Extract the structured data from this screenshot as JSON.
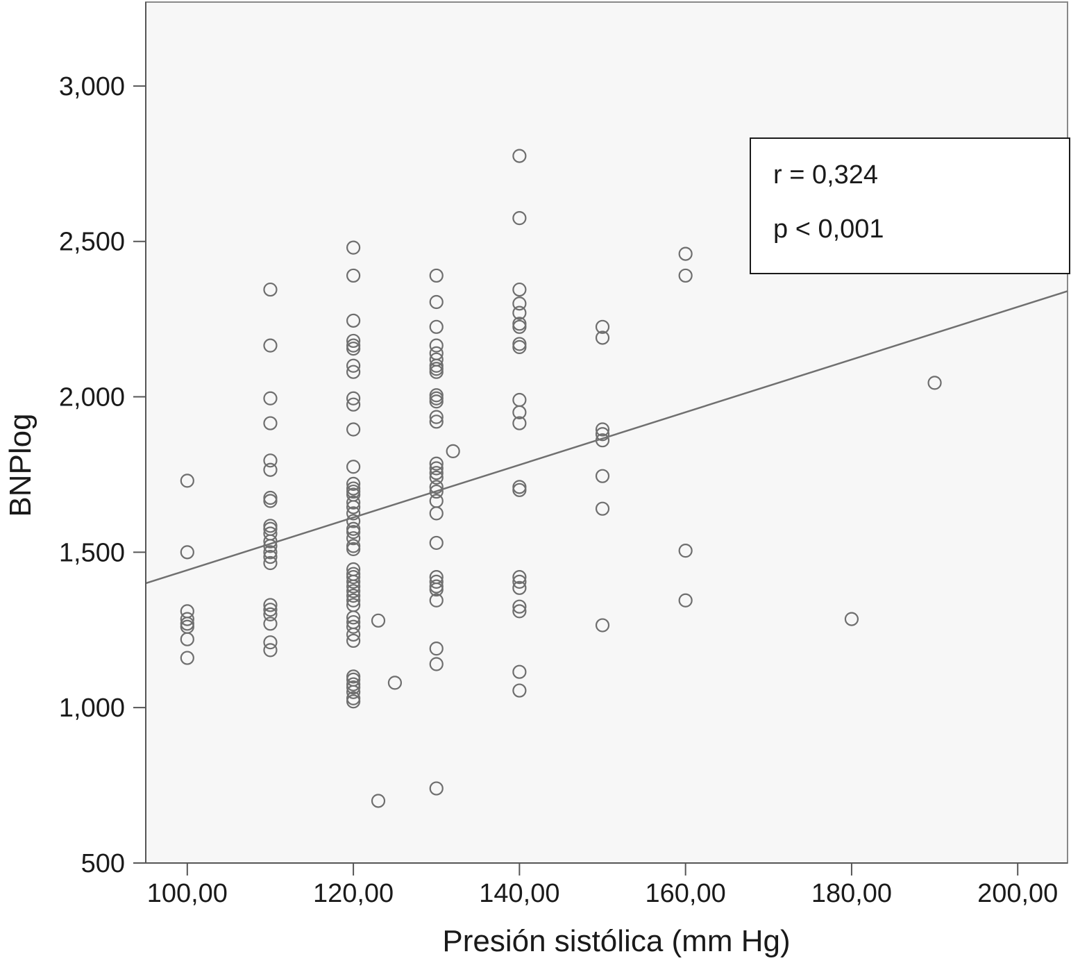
{
  "chart_data": {
    "type": "scatter",
    "title": "",
    "xlabel": "Presión sistólica (mm Hg)",
    "ylabel": "BNPlog",
    "xlim": [
      95,
      206
    ],
    "ylim": [
      500,
      3270
    ],
    "x_ticks": [
      100,
      120,
      140,
      160,
      180,
      200
    ],
    "x_tick_labels": [
      "100,00",
      "120,00",
      "140,00",
      "160,00",
      "180,00",
      "200,00"
    ],
    "y_ticks": [
      500,
      1000,
      1500,
      2000,
      2500,
      3000
    ],
    "y_tick_labels": [
      "500",
      "1,000",
      "1,500",
      "2,000",
      "2,500",
      "3,000"
    ],
    "grid": false,
    "annotation": {
      "line1": "r = 0,324",
      "line2": "p < 0,001",
      "placement": "top-right"
    },
    "regression_line": {
      "x": [
        95,
        206
      ],
      "y": [
        1400,
        2340
      ]
    },
    "colors": {
      "background": "#f7f7f7",
      "marker": "#6e6e6e",
      "line": "#707070",
      "frame": "#888888"
    },
    "points": [
      {
        "x": 100,
        "y": 1730
      },
      {
        "x": 100,
        "y": 1500
      },
      {
        "x": 100,
        "y": 1310
      },
      {
        "x": 100,
        "y": 1285
      },
      {
        "x": 100,
        "y": 1270
      },
      {
        "x": 100,
        "y": 1260
      },
      {
        "x": 100,
        "y": 1220
      },
      {
        "x": 100,
        "y": 1160
      },
      {
        "x": 110,
        "y": 2345
      },
      {
        "x": 110,
        "y": 2165
      },
      {
        "x": 110,
        "y": 1995
      },
      {
        "x": 110,
        "y": 1915
      },
      {
        "x": 110,
        "y": 1795
      },
      {
        "x": 110,
        "y": 1765
      },
      {
        "x": 110,
        "y": 1675
      },
      {
        "x": 110,
        "y": 1665
      },
      {
        "x": 110,
        "y": 1585
      },
      {
        "x": 110,
        "y": 1575
      },
      {
        "x": 110,
        "y": 1560
      },
      {
        "x": 110,
        "y": 1535
      },
      {
        "x": 110,
        "y": 1520
      },
      {
        "x": 110,
        "y": 1500
      },
      {
        "x": 110,
        "y": 1485
      },
      {
        "x": 110,
        "y": 1465
      },
      {
        "x": 110,
        "y": 1330
      },
      {
        "x": 110,
        "y": 1315
      },
      {
        "x": 110,
        "y": 1300
      },
      {
        "x": 110,
        "y": 1270
      },
      {
        "x": 110,
        "y": 1210
      },
      {
        "x": 110,
        "y": 1185
      },
      {
        "x": 120,
        "y": 2480
      },
      {
        "x": 120,
        "y": 2390
      },
      {
        "x": 120,
        "y": 2245
      },
      {
        "x": 120,
        "y": 2180
      },
      {
        "x": 120,
        "y": 2165
      },
      {
        "x": 120,
        "y": 2155
      },
      {
        "x": 120,
        "y": 2100
      },
      {
        "x": 120,
        "y": 2080
      },
      {
        "x": 120,
        "y": 1995
      },
      {
        "x": 120,
        "y": 1975
      },
      {
        "x": 120,
        "y": 1895
      },
      {
        "x": 120,
        "y": 1775
      },
      {
        "x": 120,
        "y": 1720
      },
      {
        "x": 120,
        "y": 1705
      },
      {
        "x": 120,
        "y": 1695
      },
      {
        "x": 120,
        "y": 1685
      },
      {
        "x": 120,
        "y": 1660
      },
      {
        "x": 120,
        "y": 1645
      },
      {
        "x": 120,
        "y": 1625
      },
      {
        "x": 120,
        "y": 1600
      },
      {
        "x": 120,
        "y": 1575
      },
      {
        "x": 120,
        "y": 1565
      },
      {
        "x": 120,
        "y": 1545
      },
      {
        "x": 120,
        "y": 1520
      },
      {
        "x": 120,
        "y": 1510
      },
      {
        "x": 120,
        "y": 1445
      },
      {
        "x": 120,
        "y": 1430
      },
      {
        "x": 120,
        "y": 1420
      },
      {
        "x": 120,
        "y": 1405
      },
      {
        "x": 120,
        "y": 1390
      },
      {
        "x": 120,
        "y": 1375
      },
      {
        "x": 120,
        "y": 1360
      },
      {
        "x": 120,
        "y": 1345
      },
      {
        "x": 120,
        "y": 1330
      },
      {
        "x": 120,
        "y": 1290
      },
      {
        "x": 120,
        "y": 1275
      },
      {
        "x": 120,
        "y": 1260
      },
      {
        "x": 120,
        "y": 1235
      },
      {
        "x": 120,
        "y": 1215
      },
      {
        "x": 120,
        "y": 1100
      },
      {
        "x": 120,
        "y": 1090
      },
      {
        "x": 120,
        "y": 1075
      },
      {
        "x": 120,
        "y": 1065
      },
      {
        "x": 120,
        "y": 1050
      },
      {
        "x": 120,
        "y": 1030
      },
      {
        "x": 120,
        "y": 1020
      },
      {
        "x": 123,
        "y": 1280
      },
      {
        "x": 123,
        "y": 700
      },
      {
        "x": 125,
        "y": 1080
      },
      {
        "x": 130,
        "y": 2390
      },
      {
        "x": 130,
        "y": 2305
      },
      {
        "x": 130,
        "y": 2225
      },
      {
        "x": 130,
        "y": 2165
      },
      {
        "x": 130,
        "y": 2140
      },
      {
        "x": 130,
        "y": 2120
      },
      {
        "x": 130,
        "y": 2100
      },
      {
        "x": 130,
        "y": 2090
      },
      {
        "x": 130,
        "y": 2080
      },
      {
        "x": 130,
        "y": 2005
      },
      {
        "x": 130,
        "y": 1995
      },
      {
        "x": 130,
        "y": 1985
      },
      {
        "x": 130,
        "y": 1935
      },
      {
        "x": 130,
        "y": 1920
      },
      {
        "x": 130,
        "y": 1785
      },
      {
        "x": 130,
        "y": 1770
      },
      {
        "x": 130,
        "y": 1755
      },
      {
        "x": 130,
        "y": 1740
      },
      {
        "x": 130,
        "y": 1710
      },
      {
        "x": 130,
        "y": 1695
      },
      {
        "x": 130,
        "y": 1665
      },
      {
        "x": 130,
        "y": 1625
      },
      {
        "x": 130,
        "y": 1530
      },
      {
        "x": 130,
        "y": 1420
      },
      {
        "x": 130,
        "y": 1405
      },
      {
        "x": 130,
        "y": 1390
      },
      {
        "x": 130,
        "y": 1380
      },
      {
        "x": 130,
        "y": 1345
      },
      {
        "x": 130,
        "y": 1190
      },
      {
        "x": 130,
        "y": 1140
      },
      {
        "x": 130,
        "y": 740
      },
      {
        "x": 132,
        "y": 1825
      },
      {
        "x": 140,
        "y": 2775
      },
      {
        "x": 140,
        "y": 2575
      },
      {
        "x": 140,
        "y": 2345
      },
      {
        "x": 140,
        "y": 2300
      },
      {
        "x": 140,
        "y": 2270
      },
      {
        "x": 140,
        "y": 2235
      },
      {
        "x": 140,
        "y": 2225
      },
      {
        "x": 140,
        "y": 2170
      },
      {
        "x": 140,
        "y": 2160
      },
      {
        "x": 140,
        "y": 1990
      },
      {
        "x": 140,
        "y": 1950
      },
      {
        "x": 140,
        "y": 1915
      },
      {
        "x": 140,
        "y": 1710
      },
      {
        "x": 140,
        "y": 1700
      },
      {
        "x": 140,
        "y": 1420
      },
      {
        "x": 140,
        "y": 1405
      },
      {
        "x": 140,
        "y": 1385
      },
      {
        "x": 140,
        "y": 1325
      },
      {
        "x": 140,
        "y": 1310
      },
      {
        "x": 140,
        "y": 1115
      },
      {
        "x": 140,
        "y": 1055
      },
      {
        "x": 150,
        "y": 2225
      },
      {
        "x": 150,
        "y": 2190
      },
      {
        "x": 150,
        "y": 1895
      },
      {
        "x": 150,
        "y": 1880
      },
      {
        "x": 150,
        "y": 1860
      },
      {
        "x": 150,
        "y": 1745
      },
      {
        "x": 150,
        "y": 1640
      },
      {
        "x": 150,
        "y": 1265
      },
      {
        "x": 160,
        "y": 2460
      },
      {
        "x": 160,
        "y": 2390
      },
      {
        "x": 160,
        "y": 1505
      },
      {
        "x": 160,
        "y": 1345
      },
      {
        "x": 180,
        "y": 1285
      },
      {
        "x": 190,
        "y": 2045
      }
    ]
  }
}
